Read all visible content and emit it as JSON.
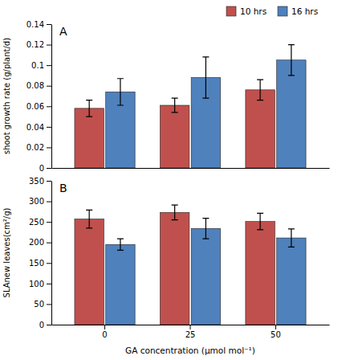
{
  "chart_data": [
    {
      "type": "bar",
      "title": "A",
      "ylabel": "shoot growth rate (g/plant/d)",
      "categories": [
        "0",
        "25",
        "50"
      ],
      "series": [
        {
          "name": "10 hrs",
          "color": "#c0504d",
          "values": [
            0.058,
            0.061,
            0.076
          ],
          "errors": [
            0.008,
            0.007,
            0.01
          ]
        },
        {
          "name": "16 hrs",
          "color": "#4f81bd",
          "values": [
            0.074,
            0.088,
            0.105
          ],
          "errors": [
            0.013,
            0.02,
            0.015
          ]
        }
      ],
      "ylim": [
        0,
        0.14
      ],
      "yticks": [
        0,
        0.02,
        0.04,
        0.06,
        0.08,
        0.1,
        0.12,
        0.14
      ],
      "legend": "upper right",
      "grid": false,
      "tick_labels": "y"
    },
    {
      "type": "bar",
      "title": "B",
      "xlabel": "GA concentration (μmol mol⁻¹)",
      "ylabel": "SLAnew leaves(cm²/g)",
      "categories": [
        "0",
        "25",
        "50"
      ],
      "series": [
        {
          "color": "#c0504d",
          "values": [
            257,
            273,
            251
          ],
          "errors": [
            22,
            18,
            20
          ]
        },
        {
          "color": "#4f81bd",
          "values": [
            195,
            234,
            211
          ],
          "errors": [
            14,
            25,
            22
          ]
        }
      ],
      "ylim": [
        0,
        350
      ],
      "yticks": [
        0,
        50,
        100,
        150,
        200,
        250,
        300,
        350
      ],
      "grid": false
    }
  ]
}
